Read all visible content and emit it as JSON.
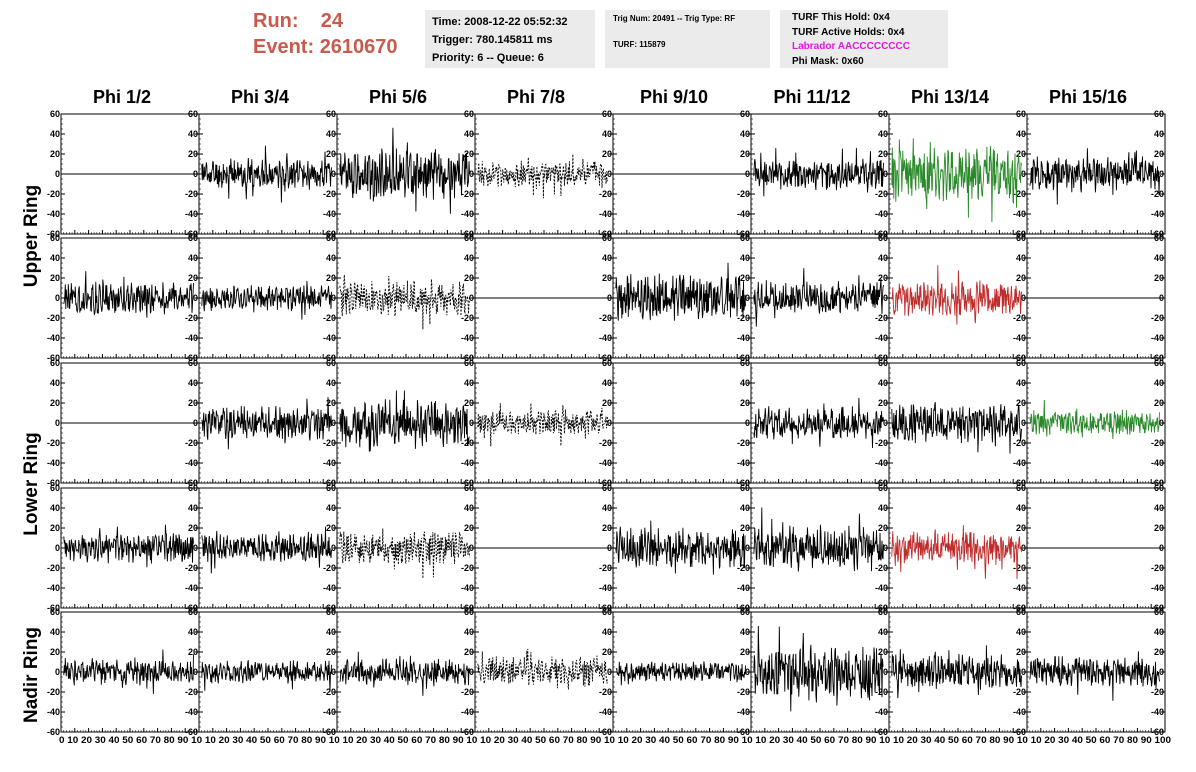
{
  "run_label": "Run:",
  "run_value": "24",
  "event_label": "Event:",
  "event_value": "2610670",
  "info": {
    "time": "Time: 2008-12-22 05:52:32",
    "trigger": "Trigger: 780.145811 ms",
    "priority": "Priority: 6 -- Queue: 6",
    "trig_num": "Trig Num: 20491 -- Trig Type: RF",
    "turf": "TURF: 115879",
    "turf_hold": "TURF This Hold: 0x4",
    "turf_active": "TURF Active Holds: 0x4",
    "labrador": "Labrador AACCCCCCCC",
    "phi_mask": "Phi Mask: 0x60"
  },
  "colors": {
    "run_text": "#c75b4e",
    "labrador_text": "#e019e0",
    "trace_default": "#000000",
    "trace_green": "#2a8a2a",
    "trace_red": "#c02c2c",
    "info_box_bg": "#ebebeb"
  },
  "chart_data": {
    "type": "line",
    "title": "",
    "columns": [
      "Phi 1/2",
      "Phi 3/4",
      "Phi 5/6",
      "Phi 7/8",
      "Phi 9/10",
      "Phi 11/12",
      "Phi 13/14",
      "Phi 15/16"
    ],
    "rows": [
      "Upper Ring",
      "Lower Ring",
      "Nadir Ring"
    ],
    "ylim": [
      -60,
      60
    ],
    "xlim": [
      0,
      100
    ],
    "yticks": [
      -60,
      -40,
      -20,
      0,
      20,
      40,
      60
    ],
    "xticks": [
      0,
      10,
      20,
      30,
      40,
      50,
      60,
      70,
      80,
      90,
      100
    ],
    "xtick_labels": [
      "0",
      "10",
      "20",
      "30",
      "40",
      "50",
      "60",
      "70",
      "80",
      "90",
      "100"
    ],
    "x_axis_text": "0 10 20 30 40 50 60 70 80 90 10 10 20 30 40 50 60 70 80 90 10 10 20 30 40 50 60 70 80 90 10 10 20 30 40 50 60 70 80 90 10 10 20 30 40 50 60 70 80 90 10 10 20 30 40 50 60 70 80 90 10 10 20 30 40 50 60 70 80 90 10 10 20 30 40 50 60 70 80 90 100",
    "panels": [
      [
        {
          "style": "flat"
        },
        {
          "style": "solid",
          "amp": 12,
          "seed": 11
        },
        {
          "style": "solid",
          "amp": 20,
          "seed": 12
        },
        {
          "style": "dashed",
          "amp": 10,
          "seed": 13
        },
        {
          "style": "flat"
        },
        {
          "style": "solid",
          "amp": 12,
          "seed": 14
        },
        {
          "style": "green",
          "amp": 22,
          "seed": 15
        },
        {
          "style": "solid",
          "amp": 14,
          "seed": 16
        }
      ],
      [
        {
          "style": "solid",
          "amp": 13,
          "seed": 21
        },
        {
          "style": "solid",
          "amp": 10,
          "seed": 22
        },
        {
          "style": "dashed",
          "amp": 14,
          "seed": 23
        },
        {
          "style": "flat"
        },
        {
          "style": "solid",
          "amp": 18,
          "seed": 24
        },
        {
          "style": "solid",
          "amp": 13,
          "seed": 25
        },
        {
          "style": "red",
          "amp": 14,
          "seed": 26
        },
        {
          "style": "flat"
        }
      ],
      [
        {
          "style": "flat"
        },
        {
          "style": "solid",
          "amp": 13,
          "seed": 31
        },
        {
          "style": "solid",
          "amp": 18,
          "seed": 32
        },
        {
          "style": "dashed",
          "amp": 10,
          "seed": 33
        },
        {
          "style": "flat"
        },
        {
          "style": "solid",
          "amp": 13,
          "seed": 34
        },
        {
          "style": "solid",
          "amp": 15,
          "seed": 35
        },
        {
          "style": "green",
          "amp": 10,
          "seed": 36
        }
      ],
      [
        {
          "style": "solid",
          "amp": 12,
          "seed": 41
        },
        {
          "style": "solid",
          "amp": 11,
          "seed": 42
        },
        {
          "style": "dashed",
          "amp": 13,
          "seed": 43
        },
        {
          "style": "flat"
        },
        {
          "style": "solid",
          "amp": 16,
          "seed": 44
        },
        {
          "style": "solid",
          "amp": 17,
          "seed": 45
        },
        {
          "style": "red",
          "amp": 13,
          "seed": 46
        },
        {
          "style": "flat"
        }
      ],
      [
        {
          "style": "solid",
          "amp": 10,
          "seed": 51
        },
        {
          "style": "solid",
          "amp": 9,
          "seed": 52
        },
        {
          "style": "solid",
          "amp": 10,
          "seed": 53
        },
        {
          "style": "dashed",
          "amp": 12,
          "seed": 54
        },
        {
          "style": "solid",
          "amp": 8,
          "seed": 55
        },
        {
          "style": "solid",
          "amp": 20,
          "seed": 56
        },
        {
          "style": "solid",
          "amp": 14,
          "seed": 57
        },
        {
          "style": "solid",
          "amp": 12,
          "seed": 58
        }
      ]
    ]
  }
}
